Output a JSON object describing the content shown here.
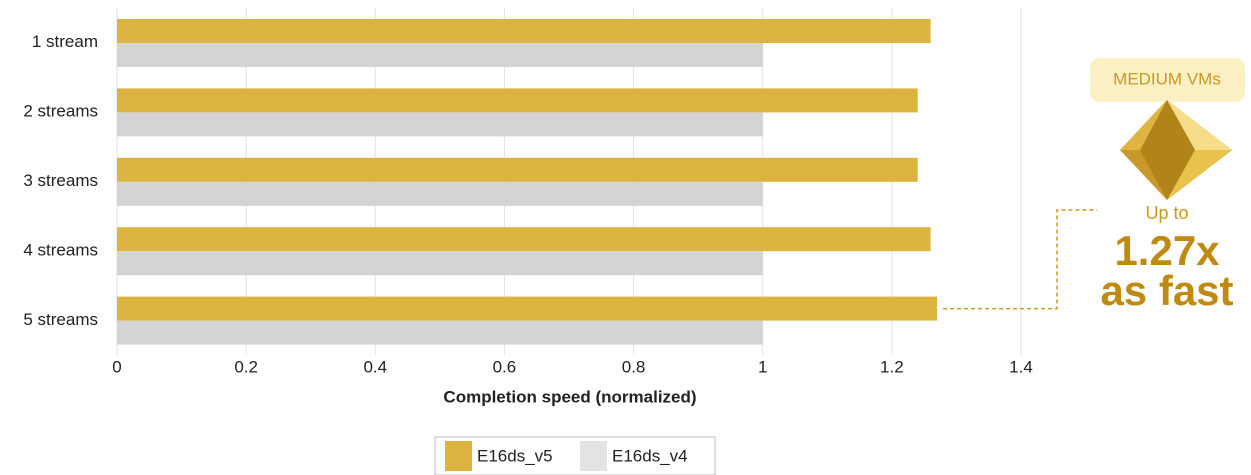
{
  "chart_data": {
    "type": "bar",
    "orientation": "horizontal",
    "categories": [
      "1 stream",
      "2 streams",
      "3 streams",
      "4 streams",
      "5 streams"
    ],
    "series": [
      {
        "name": "E16ds_v5",
        "color": "#dcb33f",
        "values": [
          1.26,
          1.24,
          1.24,
          1.26,
          1.27
        ]
      },
      {
        "name": "E16ds_v4",
        "color": "#d4d4d4",
        "values": [
          1,
          1,
          1,
          1,
          1
        ]
      }
    ],
    "xlabel": "Completion speed (normalized)",
    "xlim": [
      0,
      1.4
    ],
    "xticks": [
      0,
      0.2,
      0.4,
      0.6,
      0.8,
      1,
      1.2,
      1.4
    ],
    "grid": true,
    "annotations": {
      "badge": "MEDIUM VMs",
      "prefix": "Up to",
      "value": "1.27x",
      "suffix": "as fast"
    }
  }
}
